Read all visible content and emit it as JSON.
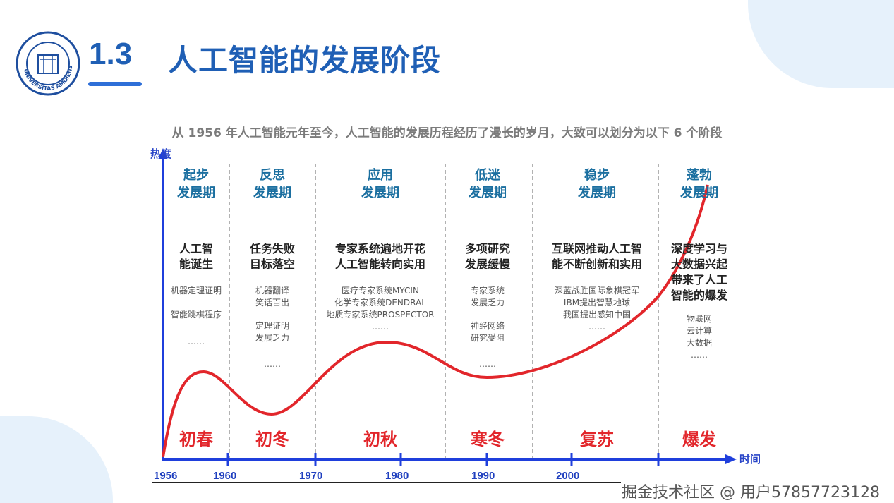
{
  "header": {
    "number": "1.3",
    "title": "人工智能的发展阶段",
    "logo_text": "UNIVERSITAS AMOIENSIS"
  },
  "subtitle": "从 1956 年人工智能元年至今，人工智能的发展历程经历了漫长的岁月，大致可以划分为以下 6 个阶段",
  "diagram": {
    "y_axis_label": "热度",
    "x_axis_label": "时间",
    "years": [
      "1956",
      "1960",
      "1970",
      "1980",
      "1990",
      "2000"
    ],
    "stages": [
      {
        "title": "起步\n发展期",
        "main": "人工智\n能诞生",
        "details": [
          "机器定理证明",
          "智能跳棋程序",
          "……"
        ],
        "season": "初春"
      },
      {
        "title": "反思\n发展期",
        "main": "任务失败\n目标落空",
        "details": [
          "机器翻译\n笑话百出",
          "定理证明\n发展乏力",
          "……"
        ],
        "season": "初冬"
      },
      {
        "title": "应用\n发展期",
        "main": "专家系统遍地开花\n人工智能转向实用",
        "details": [
          "医疗专家系统MYCIN\n化学专家系统DENDRAL\n地质专家系统PROSPECTOR\n……"
        ],
        "season": "初秋"
      },
      {
        "title": "低迷\n发展期",
        "main": "多项研究\n发展缓慢",
        "details": [
          "专家系统\n发展乏力",
          "神经网络\n研究受阻",
          "……"
        ],
        "season": "寒冬"
      },
      {
        "title": "稳步\n发展期",
        "main": "互联网推动人工智\n能不断创新和实用",
        "details": [
          "深蓝战胜国际象棋冠军\nIBM提出智慧地球\n我国提出感知中国\n……"
        ],
        "season": "复苏"
      },
      {
        "title": "蓬勃\n发展期",
        "main": "深度学习与\n大数据兴起\n带来了人工\n智能的爆发",
        "details": [
          "物联网\n云计算\n大数据\n……"
        ],
        "season": "爆发"
      }
    ],
    "colors": {
      "axis": "#1f3fdc",
      "curve": "#e2262b",
      "stage": "#1b6fa0",
      "season": "#e2262b"
    }
  },
  "watermark": "掘金技术社区 @ 用户57857723128"
}
